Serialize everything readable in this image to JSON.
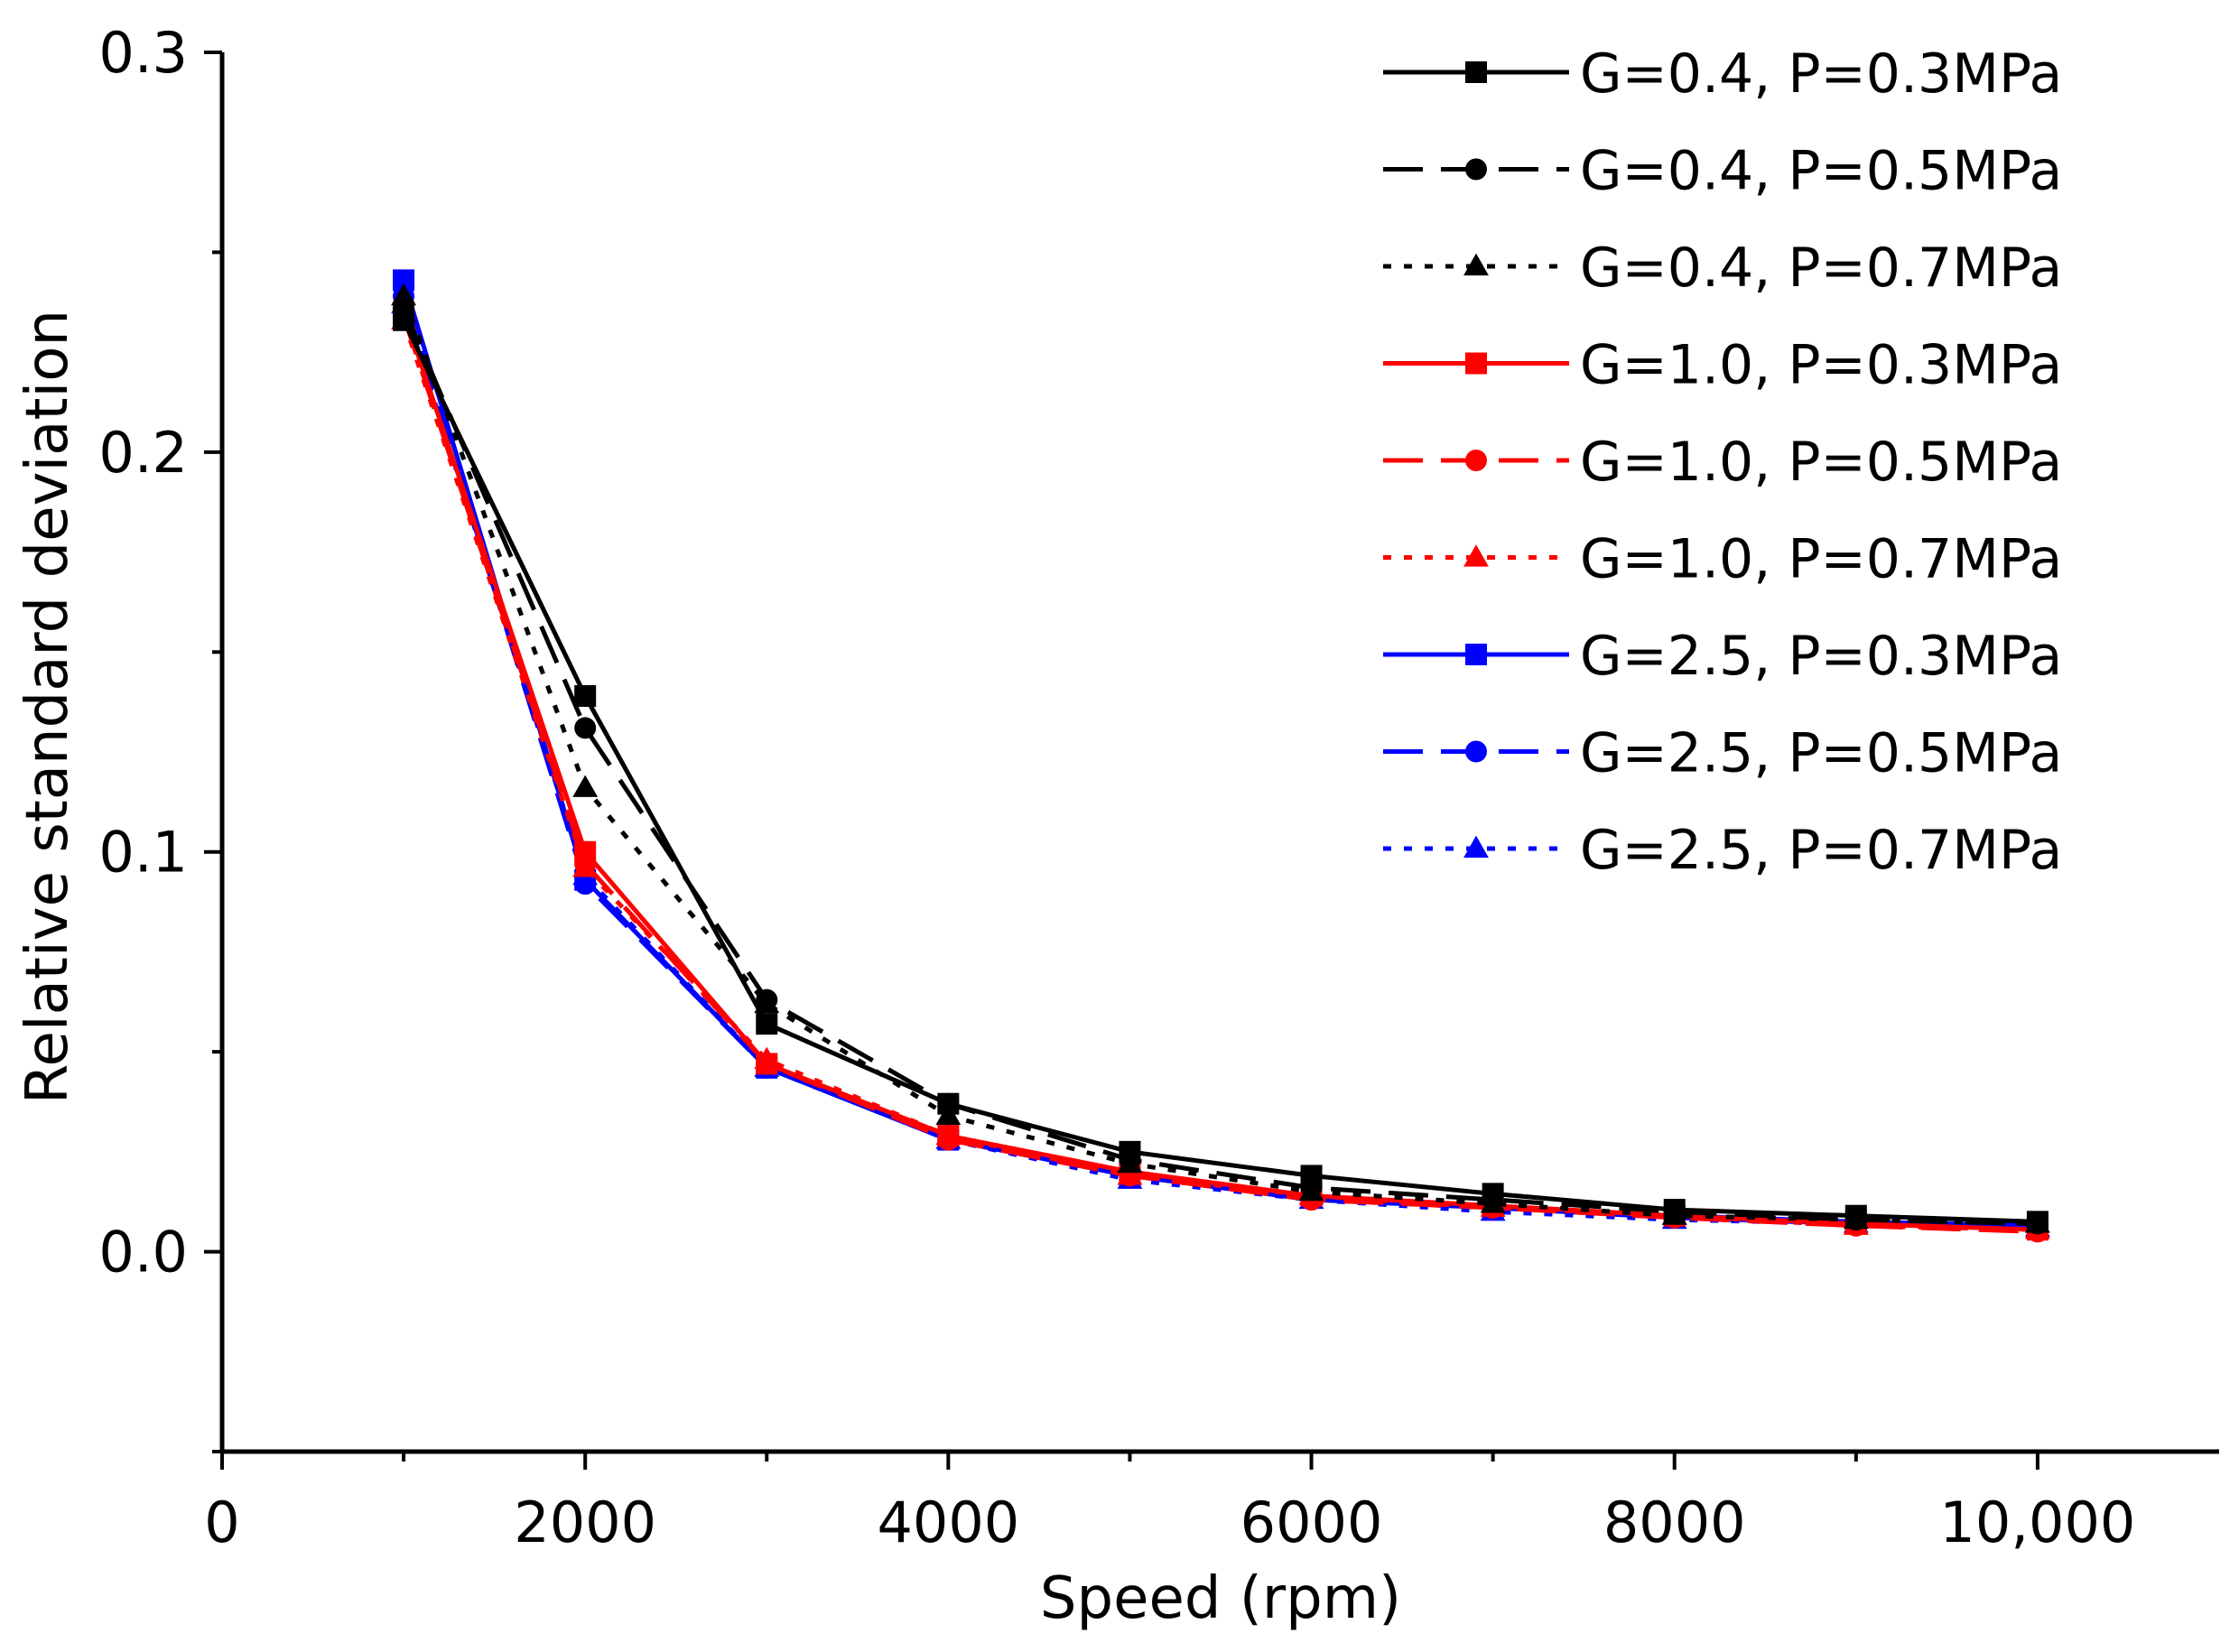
{
  "chart_data": {
    "type": "line",
    "title": "",
    "xlabel": "Speed (rpm)",
    "ylabel": "Relative standard deviation",
    "xlim": [
      0,
      11000
    ],
    "ylim": [
      -0.05,
      0.3
    ],
    "x_ticks": [
      0,
      2000,
      4000,
      6000,
      8000,
      10000
    ],
    "x_tick_labels": [
      "0",
      "2000",
      "4000",
      "6000",
      "8000",
      "10,000"
    ],
    "y_ticks": [
      0.0,
      0.1,
      0.2,
      0.3
    ],
    "y_tick_labels": [
      "0.0",
      "0.1",
      "0.2",
      "0.3"
    ],
    "grid": false,
    "legend_position": "top-right",
    "x": [
      1000,
      2000,
      3000,
      4000,
      5000,
      6000,
      7000,
      8000,
      9000,
      10000
    ],
    "series": [
      {
        "name": "G=0.4, P=0.3MPa",
        "color": "#000000",
        "line": "solid",
        "marker": "square",
        "values": [
          0.233,
          0.139,
          0.057,
          0.037,
          0.025,
          0.019,
          0.0145,
          0.0105,
          0.009,
          0.0075
        ]
      },
      {
        "name": "G=0.4, P=0.5MPa",
        "color": "#000000",
        "line": "dashed",
        "marker": "circle",
        "values": [
          0.236,
          0.131,
          0.063,
          0.037,
          0.023,
          0.016,
          0.013,
          0.01,
          0.008,
          0.007
        ]
      },
      {
        "name": "G=0.4, P=0.7MPa",
        "color": "#000000",
        "line": "dotted",
        "marker": "triangle",
        "values": [
          0.239,
          0.116,
          0.062,
          0.034,
          0.022,
          0.015,
          0.012,
          0.009,
          0.008,
          0.007
        ]
      },
      {
        "name": "G=1.0, P=0.3MPa",
        "color": "#ff0000",
        "line": "solid",
        "marker": "square",
        "values": [
          0.235,
          0.1,
          0.047,
          0.029,
          0.02,
          0.014,
          0.0115,
          0.009,
          0.007,
          0.0055
        ]
      },
      {
        "name": "G=1.0, P=0.5MPa",
        "color": "#ff0000",
        "line": "dashed",
        "marker": "circle",
        "values": [
          0.234,
          0.097,
          0.047,
          0.028,
          0.019,
          0.013,
          0.011,
          0.0085,
          0.0065,
          0.005
        ]
      },
      {
        "name": "G=1.0, P=0.7MPa",
        "color": "#ff0000",
        "line": "dotted",
        "marker": "triangle",
        "values": [
          0.233,
          0.096,
          0.048,
          0.029,
          0.019,
          0.014,
          0.011,
          0.009,
          0.0065,
          0.0055
        ]
      },
      {
        "name": "G=2.5, P=0.3MPa",
        "color": "#0000ff",
        "line": "solid",
        "marker": "square",
        "values": [
          0.243,
          0.093,
          0.046,
          0.028,
          0.019,
          0.014,
          0.011,
          0.009,
          0.0075,
          0.0065
        ]
      },
      {
        "name": "G=2.5, P=0.5MPa",
        "color": "#0000ff",
        "line": "dashed",
        "marker": "circle",
        "values": [
          0.239,
          0.092,
          0.046,
          0.028,
          0.019,
          0.013,
          0.011,
          0.0085,
          0.007,
          0.006
        ]
      },
      {
        "name": "G=2.5, P=0.7MPa",
        "color": "#0000ff",
        "line": "dotted",
        "marker": "triangle",
        "values": [
          0.237,
          0.094,
          0.046,
          0.028,
          0.018,
          0.013,
          0.01,
          0.008,
          0.007,
          0.006
        ]
      }
    ]
  }
}
